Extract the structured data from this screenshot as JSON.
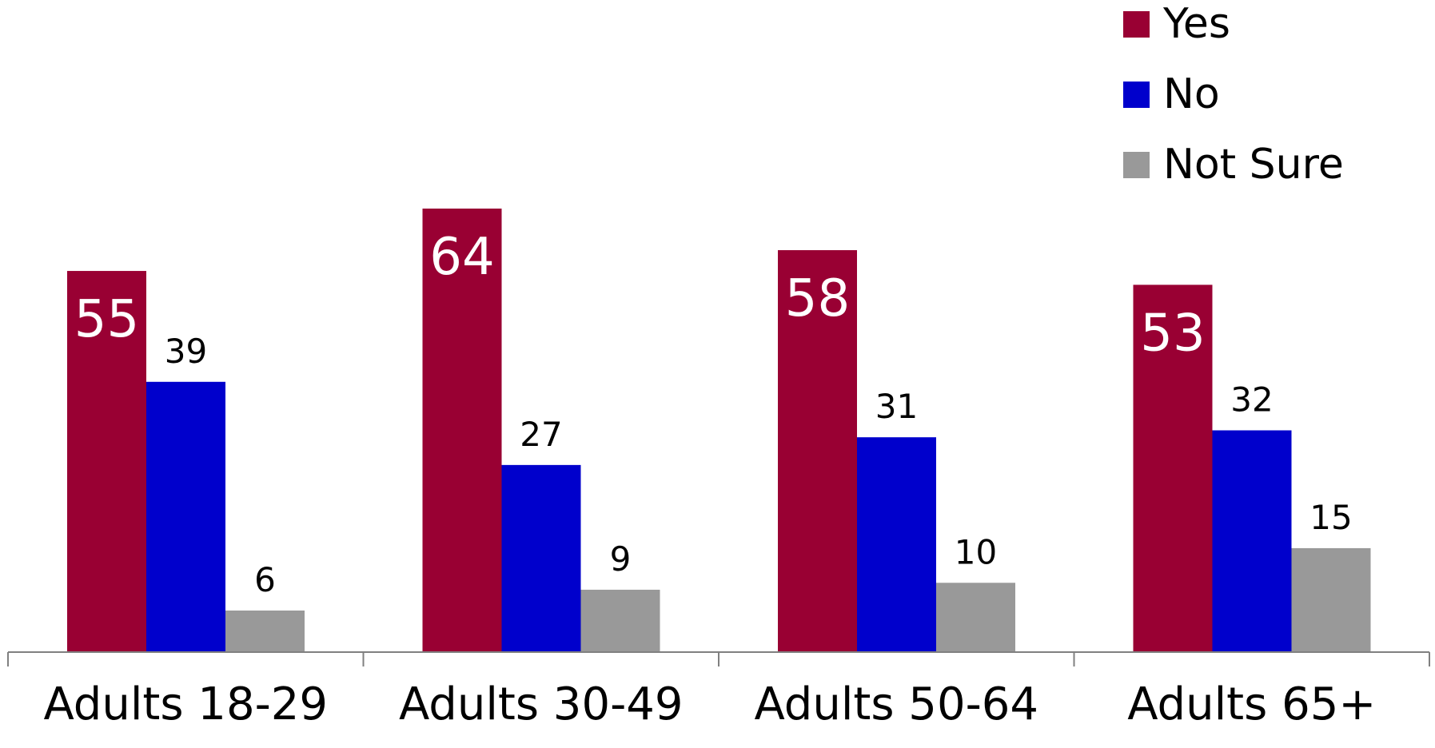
{
  "chart_data": {
    "type": "bar",
    "categories": [
      "Adults 18-29",
      "Adults 30-49",
      "Adults 50-64",
      "Adults 65+"
    ],
    "series": [
      {
        "name": "Yes",
        "values": [
          55,
          64,
          58,
          53
        ],
        "color": "#990033"
      },
      {
        "name": "No",
        "values": [
          39,
          27,
          31,
          32
        ],
        "color": "#0000CC"
      },
      {
        "name": "Not Sure",
        "values": [
          6,
          9,
          10,
          15
        ],
        "color": "#999999"
      }
    ],
    "data_labels": [
      [
        "55",
        "39",
        "6"
      ],
      [
        "64",
        "27",
        "9"
      ],
      [
        "58",
        "31",
        "10"
      ],
      [
        "53",
        "32",
        "15"
      ]
    ],
    "xlabel": "",
    "ylabel": "",
    "ylim": [
      0,
      64
    ],
    "grid": false,
    "legend_position": "top-right"
  }
}
